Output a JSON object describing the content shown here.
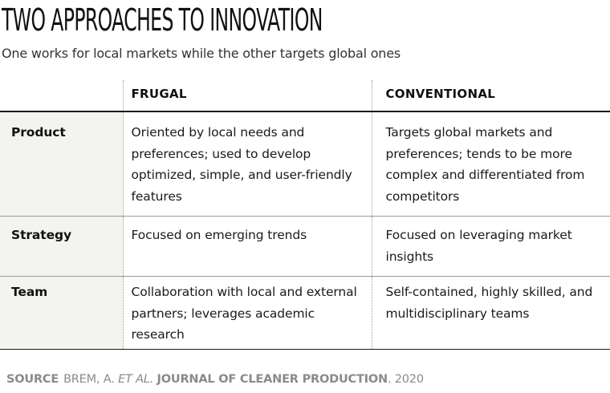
{
  "header": {
    "title": "TWO APPROACHES TO INNOVATION",
    "subtitle": "One works for local markets while the other targets global ones"
  },
  "table": {
    "columns": [
      "",
      "FRUGAL",
      "CONVENTIONAL"
    ],
    "rows": [
      {
        "label": "Product",
        "frugal": "Oriented by local needs and preferences; used to develop optimized, simple, and user-friendly features",
        "conventional": "Targets global markets and preferences; tends to be more complex and differentiated from competitors"
      },
      {
        "label": "Strategy",
        "frugal": "Focused on emerging trends",
        "conventional": "Focused on leveraging market insights"
      },
      {
        "label": "Team",
        "frugal": "Collaboration with local and external partners; leverages academic research",
        "conventional": "Self-contained, highly skilled, and multidisciplinary teams"
      }
    ]
  },
  "source": {
    "label": "SOURCE",
    "authors": "BREM, A.",
    "et_al": "ET AL.",
    "journal": "JOURNAL OF CLEANER PRODUCTION",
    "year": ". 2020"
  }
}
